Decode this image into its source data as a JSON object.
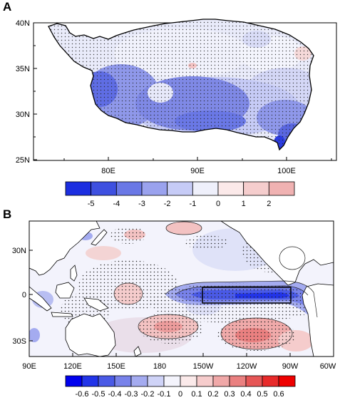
{
  "panel_a": {
    "letter": "A",
    "lat_ticks": [
      "40N",
      "35N",
      "30N",
      "25N"
    ],
    "lon_ticks": [
      "80E",
      "90E",
      "100E"
    ],
    "colorbar_labels": [
      "-5",
      "-4",
      "-3",
      "-2",
      "-1",
      "0",
      "1",
      "2"
    ],
    "colorbar_colors": [
      "#1c2ee0",
      "#3e50e0",
      "#6a78e6",
      "#9aa2ee",
      "#c6cbf6",
      "#eff0fb",
      "#fbe9e9",
      "#f5cdcd",
      "#f0b2b2"
    ]
  },
  "panel_b": {
    "letter": "B",
    "lat_ticks": [
      "30N",
      "0",
      "30S"
    ],
    "lon_ticks": [
      "90E",
      "120E",
      "150E",
      "180",
      "150W",
      "120W",
      "90W",
      "60W"
    ],
    "colorbar_labels": [
      "-0.6",
      "-0.5",
      "-0.4",
      "-0.3",
      "-0.2",
      "-0.1",
      "0",
      "0.1",
      "0.2",
      "0.3",
      "0.4",
      "0.5",
      "0.6"
    ],
    "colorbar_colors": [
      "#0000ee",
      "#2234e8",
      "#4a5ae6",
      "#7882ea",
      "#a4abf0",
      "#cfd3f7",
      "#f4f4fc",
      "#fbeaea",
      "#f6cccc",
      "#f0a8a8",
      "#ea8080",
      "#e65656",
      "#e82a2a",
      "#ee0000"
    ]
  }
}
